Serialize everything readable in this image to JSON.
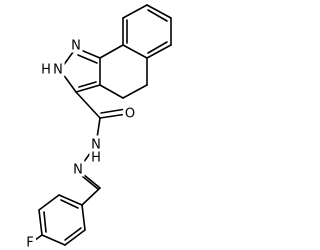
{
  "atoms": [
    {
      "label": "N"
    },
    {
      "label": "H"
    },
    {
      "label": "N"
    },
    {
      "label": "O"
    },
    {
      "label": "N"
    },
    {
      "label": "H"
    },
    {
      "label": "N"
    },
    {
      "label": "F"
    }
  ]
}
